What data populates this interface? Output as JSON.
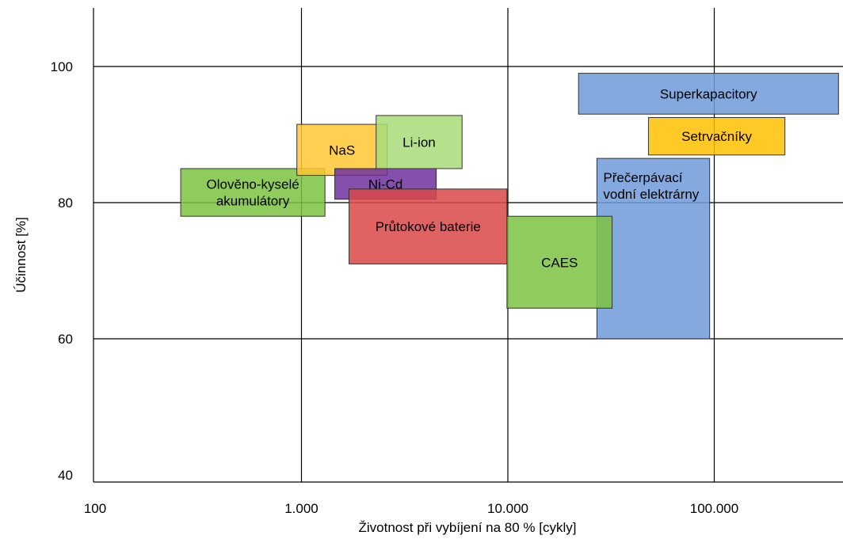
{
  "chart_data": {
    "type": "range-box",
    "title": "",
    "xlabel": "Životnost při vybíjení na 80 % [cykly]",
    "ylabel": "Účinnost [%]",
    "x_scale": "log",
    "xlim": [
      100,
      400000
    ],
    "ylim": [
      40,
      110
    ],
    "x_ticks": [
      {
        "value": 100,
        "label": "100"
      },
      {
        "value": 1000,
        "label": "1.000"
      },
      {
        "value": 10000,
        "label": "10.000"
      },
      {
        "value": 100000,
        "label": "100.000"
      }
    ],
    "y_ticks": [
      {
        "value": 40,
        "label": "40"
      },
      {
        "value": 60,
        "label": "60"
      },
      {
        "value": 80,
        "label": "80"
      },
      {
        "value": 100,
        "label": "100"
      }
    ],
    "grid": true,
    "series": [
      {
        "name": "Superkapacitory",
        "label_lines": [
          "Superkapacitory"
        ],
        "x_range": [
          22000,
          400000
        ],
        "y_range": [
          93,
          99
        ],
        "color": "#6f9ad8",
        "label_anchor": "middle"
      },
      {
        "name": "Setrvačníky",
        "label_lines": [
          "Setrvačníky"
        ],
        "x_range": [
          48000,
          220000
        ],
        "y_range": [
          87,
          92.5
        ],
        "color": "#ffc000",
        "label_anchor": "middle"
      },
      {
        "name": "Přečerpávací vodní elektrárny",
        "label_lines": [
          "Přečerpávací",
          "vodní elektrárny"
        ],
        "x_range": [
          27000,
          95000
        ],
        "y_range": [
          60,
          86.5
        ],
        "color": "#6f9ad8",
        "label_anchor": "start"
      },
      {
        "name": "Olověno-kyselé akumulátory",
        "label_lines": [
          "Olověno-kyselé",
          "akumulátory"
        ],
        "x_range": [
          260,
          1300
        ],
        "y_range": [
          78,
          85
        ],
        "color": "#7cc242",
        "label_anchor": "middle"
      },
      {
        "name": "NaS",
        "label_lines": [
          "NaS"
        ],
        "x_range": [
          950,
          2600
        ],
        "y_range": [
          84,
          91.5
        ],
        "color": "#ffc733",
        "label_anchor": "middle"
      },
      {
        "name": "Ni-Cd",
        "label_lines": [
          "Ni-Cd"
        ],
        "x_range": [
          1450,
          4500
        ],
        "y_range": [
          80.5,
          85
        ],
        "color": "#7030a0",
        "label_anchor": "middle"
      },
      {
        "name": "Li-ion",
        "label_lines": [
          "Li-ion"
        ],
        "x_range": [
          2300,
          6000
        ],
        "y_range": [
          85,
          92.8
        ],
        "color": "#a9dc78",
        "label_anchor": "middle"
      },
      {
        "name": "Průtokové baterie",
        "label_lines": [
          "Průtokové baterie"
        ],
        "x_range": [
          1700,
          9900
        ],
        "y_range": [
          71,
          82
        ],
        "color": "#d94848",
        "label_anchor": "middle"
      },
      {
        "name": "CAES",
        "label_lines": [
          "CAES"
        ],
        "x_range": [
          9900,
          32000
        ],
        "y_range": [
          64.5,
          78
        ],
        "color": "#7cc242",
        "label_anchor": "middle"
      }
    ]
  }
}
